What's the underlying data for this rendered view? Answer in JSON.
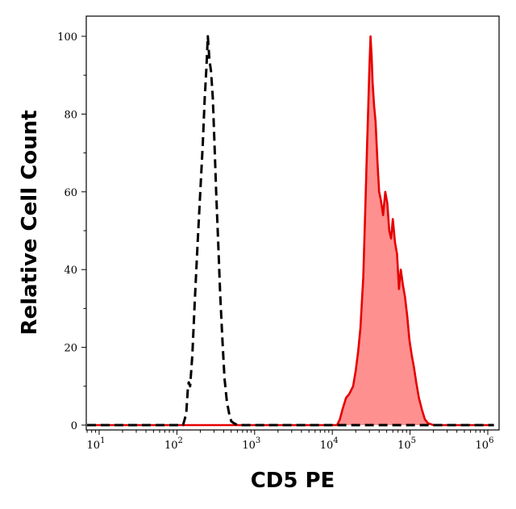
{
  "chart_data": {
    "type": "area",
    "xlabel": "CD5 PE",
    "ylabel": "Relative Cell Count",
    "x_scale": "log",
    "xlim": [
      10,
      1000000
    ],
    "ylim": [
      0,
      100
    ],
    "x_ticks": [
      {
        "value": 10,
        "base": "10",
        "exp": "1"
      },
      {
        "value": 100,
        "base": "10",
        "exp": "2"
      },
      {
        "value": 1000,
        "base": "10",
        "exp": "3"
      },
      {
        "value": 10000,
        "base": "10",
        "exp": "4"
      },
      {
        "value": 100000,
        "base": "10",
        "exp": "5"
      },
      {
        "value": 1000000,
        "base": "10",
        "exp": "6"
      }
    ],
    "y_ticks": [
      {
        "value": 0,
        "label": "0"
      },
      {
        "value": 20,
        "label": "20"
      },
      {
        "value": 40,
        "label": "40"
      },
      {
        "value": 60,
        "label": "60"
      },
      {
        "value": 80,
        "label": "80"
      },
      {
        "value": 100,
        "label": "100"
      }
    ],
    "grid": false,
    "series": [
      {
        "style": "dashed",
        "line_color": "#000000",
        "fill": "none",
        "points": [
          [
            6.3,
            0
          ],
          [
            120,
            0
          ],
          [
            126,
            1.5
          ],
          [
            132,
            3
          ],
          [
            138,
            9
          ],
          [
            142,
            11
          ],
          [
            148,
            10
          ],
          [
            158,
            18
          ],
          [
            170,
            32
          ],
          [
            185,
            47
          ],
          [
            200,
            60
          ],
          [
            215,
            72
          ],
          [
            228,
            84
          ],
          [
            240,
            92
          ],
          [
            250,
            100
          ],
          [
            262,
            94
          ],
          [
            275,
            91
          ],
          [
            290,
            84
          ],
          [
            305,
            72
          ],
          [
            320,
            60
          ],
          [
            340,
            47
          ],
          [
            360,
            34
          ],
          [
            385,
            22
          ],
          [
            410,
            12
          ],
          [
            440,
            6
          ],
          [
            470,
            3
          ],
          [
            500,
            1
          ],
          [
            540,
            0.5
          ],
          [
            600,
            0
          ],
          [
            1200000,
            0
          ]
        ]
      },
      {
        "style": "solid",
        "line_color": "#e60000",
        "fill": "#ff9090",
        "points": [
          [
            6.3,
            0
          ],
          [
            11500,
            0
          ],
          [
            12500,
            1.5
          ],
          [
            13500,
            4
          ],
          [
            15000,
            7
          ],
          [
            16500,
            8
          ],
          [
            18500,
            10
          ],
          [
            20000,
            14
          ],
          [
            21500,
            19
          ],
          [
            23000,
            25
          ],
          [
            25000,
            38
          ],
          [
            26500,
            55
          ],
          [
            28000,
            72
          ],
          [
            29000,
            82
          ],
          [
            30000,
            92
          ],
          [
            31000,
            100
          ],
          [
            32000,
            95
          ],
          [
            33000,
            88
          ],
          [
            34500,
            82
          ],
          [
            36000,
            78
          ],
          [
            38000,
            68
          ],
          [
            40000,
            60
          ],
          [
            42000,
            58
          ],
          [
            45000,
            54
          ],
          [
            48000,
            60
          ],
          [
            51000,
            57
          ],
          [
            54000,
            50
          ],
          [
            57000,
            48
          ],
          [
            60000,
            53
          ],
          [
            64000,
            47
          ],
          [
            68000,
            44
          ],
          [
            72000,
            35
          ],
          [
            76000,
            40
          ],
          [
            81000,
            36
          ],
          [
            86000,
            33
          ],
          [
            92000,
            28
          ],
          [
            98000,
            22
          ],
          [
            105000,
            18
          ],
          [
            112000,
            15
          ],
          [
            120000,
            11
          ],
          [
            130000,
            7
          ],
          [
            142000,
            4
          ],
          [
            155000,
            1.5
          ],
          [
            170000,
            0.5
          ],
          [
            200000,
            0
          ],
          [
            1200000,
            0
          ]
        ]
      }
    ]
  }
}
